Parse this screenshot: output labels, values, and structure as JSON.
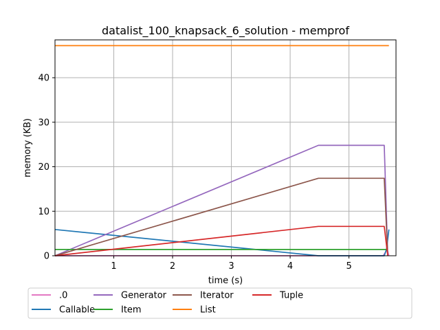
{
  "chart_data": {
    "type": "line",
    "title": "datalist_100_knapsack_6_solution - memprof",
    "xlabel": "time (s)",
    "ylabel": "memory (KB)",
    "xlim": [
      0,
      5.8
    ],
    "ylim": [
      0,
      48.5
    ],
    "xticks": [
      1,
      2,
      3,
      4,
      5
    ],
    "yticks": [
      0,
      10,
      20,
      30,
      40
    ],
    "grid": true,
    "legend_position": "below-center",
    "series": [
      {
        "name": ".0",
        "color": "#e377c2",
        "x": [
          0.0,
          5.58,
          5.65,
          5.68
        ],
        "y": [
          0.0,
          0.0,
          1.4,
          0.0
        ]
      },
      {
        "name": "Callable",
        "color": "#1f77b4",
        "x": [
          0.0,
          4.48,
          5.6,
          5.64,
          5.68
        ],
        "y": [
          5.9,
          0.0,
          0.0,
          1.5,
          5.9
        ]
      },
      {
        "name": "Generator",
        "color": "#9467bd",
        "x": [
          0.0,
          4.48,
          5.6,
          5.66
        ],
        "y": [
          0.0,
          24.8,
          24.8,
          0.0
        ]
      },
      {
        "name": "Item",
        "color": "#2ca02c",
        "x": [
          0.0,
          5.66
        ],
        "y": [
          1.4,
          1.4
        ]
      },
      {
        "name": "Iterator",
        "color": "#8c564b",
        "x": [
          0.0,
          4.48,
          5.6,
          5.66
        ],
        "y": [
          0.0,
          17.4,
          17.4,
          0.0
        ]
      },
      {
        "name": "List",
        "color": "#ff7f0e",
        "x": [
          0.0,
          5.68
        ],
        "y": [
          47.2,
          47.2
        ]
      },
      {
        "name": "Tuple",
        "color": "#d62728",
        "x": [
          0.0,
          4.48,
          5.6,
          5.66
        ],
        "y": [
          0.0,
          6.6,
          6.6,
          0.0
        ]
      }
    ]
  }
}
